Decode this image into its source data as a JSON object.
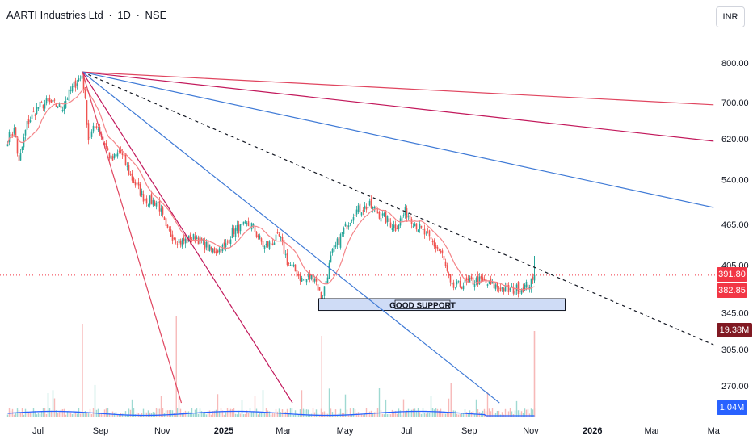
{
  "header": {
    "symbol": "AARTI Industries Ltd",
    "sep1": "·",
    "interval": "1D",
    "sep2": "·",
    "exchange": "NSE"
  },
  "currency_button": "INR",
  "badges": {
    "last_price": "391.80",
    "ma_value": "382.85",
    "volume": "19.38M",
    "volume_ma": "1.04M"
  },
  "support_label": "GOOD SUPPORT",
  "colors": {
    "up": "#26a69a",
    "down": "#ef5350",
    "ma_line": "#f48488",
    "fan_red": "#e0455f",
    "fan_crimson": "#c2185b",
    "fan_blue": "#3f7ad6",
    "trend_dashed": "#131722",
    "support_fill": "#cfdcf6",
    "volume_ma_line": "#2962ff",
    "price_badge": "#f23645",
    "volume_badge": "#801922",
    "volume_ma_badge": "#2962ff"
  },
  "chart_data": {
    "type": "candlestick",
    "scale": "log",
    "ticker": "AARTI Industries Ltd",
    "interval": "1D",
    "exchange": "NSE",
    "currency": "INR",
    "x_ticks": [
      "Jul",
      "Sep",
      "Nov",
      "2025",
      "Mar",
      "May",
      "Jul",
      "Sep",
      "Nov",
      "2026",
      "Mar",
      "Ma"
    ],
    "y_ticks": [
      "800.00",
      "700.00",
      "620.00",
      "540.00",
      "465.00",
      "405.00",
      "345.00",
      "305.00",
      "270.00"
    ],
    "y_tick_values": [
      800,
      700,
      620,
      540,
      465,
      405,
      345,
      305,
      270
    ],
    "price_path": [
      [
        "2024-06-01",
        620
      ],
      [
        "2024-06-08",
        640
      ],
      [
        "2024-06-12",
        568
      ],
      [
        "2024-06-20",
        650
      ],
      [
        "2024-07-01",
        690
      ],
      [
        "2024-07-10",
        700
      ],
      [
        "2024-07-25",
        690
      ],
      [
        "2024-08-05",
        740
      ],
      [
        "2024-08-14",
        770
      ],
      [
        "2024-08-20",
        620
      ],
      [
        "2024-08-28",
        650
      ],
      [
        "2024-09-12",
        575
      ],
      [
        "2024-09-20",
        595
      ],
      [
        "2024-10-01",
        545
      ],
      [
        "2024-10-15",
        505
      ],
      [
        "2024-10-28",
        500
      ],
      [
        "2024-11-05",
        455
      ],
      [
        "2024-11-20",
        438
      ],
      [
        "2024-12-05",
        445
      ],
      [
        "2024-12-20",
        425
      ],
      [
        "2025-01-02",
        430
      ],
      [
        "2025-01-10",
        455
      ],
      [
        "2025-01-28",
        465
      ],
      [
        "2025-02-10",
        430
      ],
      [
        "2025-02-25",
        445
      ],
      [
        "2025-03-05",
        410
      ],
      [
        "2025-03-20",
        385
      ],
      [
        "2025-04-01",
        390
      ],
      [
        "2025-04-08",
        360
      ],
      [
        "2025-04-18",
        420
      ],
      [
        "2025-04-28",
        450
      ],
      [
        "2025-05-10",
        485
      ],
      [
        "2025-05-25",
        495
      ],
      [
        "2025-06-05",
        480
      ],
      [
        "2025-06-20",
        460
      ],
      [
        "2025-06-30",
        485
      ],
      [
        "2025-07-10",
        465
      ],
      [
        "2025-07-25",
        440
      ],
      [
        "2025-08-05",
        420
      ],
      [
        "2025-08-14",
        375
      ],
      [
        "2025-08-25",
        380
      ],
      [
        "2025-09-10",
        385
      ],
      [
        "2025-09-25",
        378
      ],
      [
        "2025-10-10",
        372
      ],
      [
        "2025-10-25",
        376
      ],
      [
        "2025-11-03",
        383
      ],
      [
        "2025-11-06",
        391.8
      ]
    ],
    "last_price": 391.8,
    "moving_average_last": 382.85,
    "volume_last": "19.38M",
    "volume_ma_last": "1.04M",
    "annotations": [
      {
        "type": "rectangle",
        "label": "GOOD SUPPORT",
        "from": "2025-04-05",
        "to": "2025-12-05",
        "price_low": 348,
        "price_high": 362
      },
      {
        "type": "trendline",
        "style": "dashed",
        "from": [
          "2024-08-14",
          776
        ],
        "to": [
          "2026-05-01",
          310
        ]
      },
      {
        "type": "fan",
        "color": "red",
        "from": [
          "2024-08-14",
          776
        ],
        "to": [
          "2026-05-01",
          695
        ]
      },
      {
        "type": "fan",
        "color": "crimson",
        "from": [
          "2024-08-14",
          776
        ],
        "to": [
          "2026-05-01",
          615
        ]
      },
      {
        "type": "fan",
        "color": "blue",
        "from": [
          "2024-08-14",
          776
        ],
        "to": [
          "2026-05-01",
          492
        ]
      },
      {
        "type": "fan",
        "color": "blue",
        "from": [
          "2024-08-14",
          776
        ],
        "to": [
          "2025-10-01",
          255
        ]
      },
      {
        "type": "fan",
        "color": "crimson",
        "from": [
          "2024-08-14",
          776
        ],
        "to": [
          "2025-03-10",
          255
        ]
      },
      {
        "type": "fan",
        "color": "red",
        "from": [
          "2024-08-14",
          776
        ],
        "to": [
          "2024-11-20",
          255
        ]
      }
    ]
  }
}
